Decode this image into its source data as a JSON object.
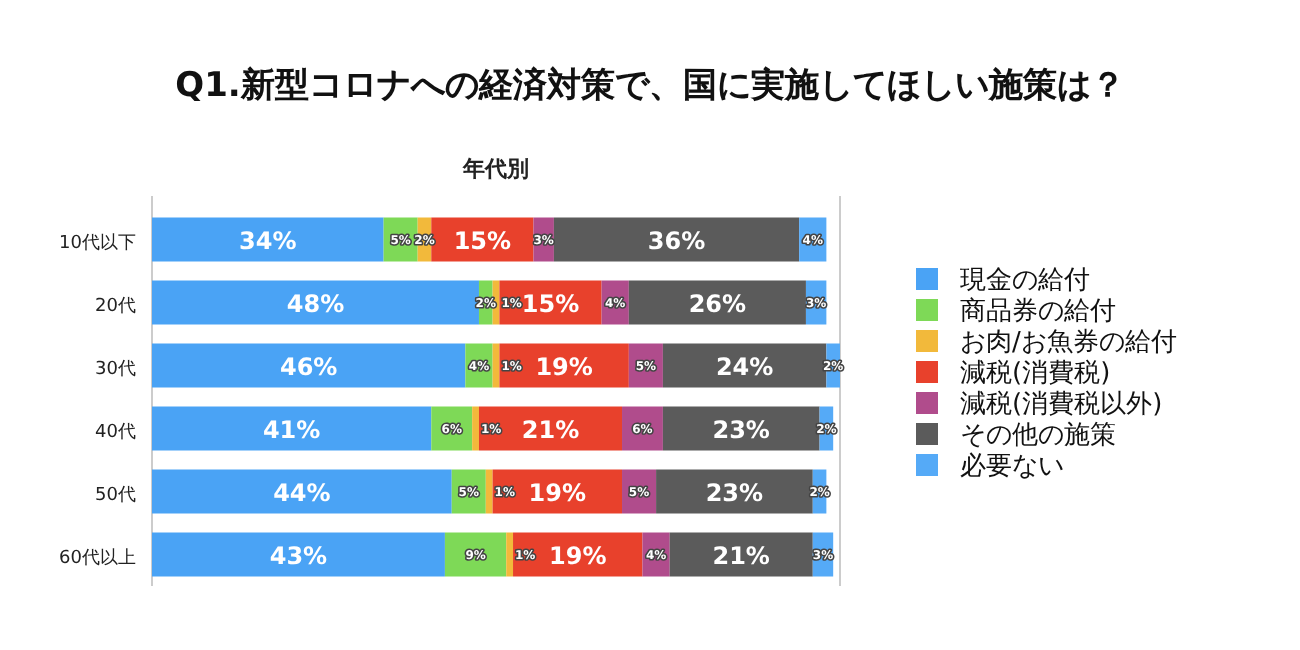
{
  "chart_data": {
    "type": "bar",
    "orientation": "horizontal",
    "stacked": true,
    "title": "Q1.新型コロナへの経済対策で、国に実施してほしい施策は？",
    "subtitle": "年代別",
    "legend": "right",
    "categories": [
      "10代以下",
      "20代",
      "30代",
      "40代",
      "50代",
      "60代以上"
    ],
    "series": [
      {
        "name": "現金の給付",
        "color": "#4aa3f5",
        "values": [
          34,
          48,
          46,
          41,
          44,
          43
        ],
        "value_labels": [
          "34%",
          "48%",
          "46%",
          "41%",
          "44%",
          "43%"
        ]
      },
      {
        "name": "商品券の給付",
        "color": "#7ed957",
        "values": [
          5,
          2,
          4,
          6,
          5,
          9
        ],
        "value_labels": [
          "5%",
          "2%",
          "4%",
          "6%",
          "5%",
          "9%"
        ]
      },
      {
        "name": "お肉/お魚券の給付",
        "color": "#f2b93b",
        "values": [
          2,
          1,
          1,
          1,
          1,
          1
        ],
        "value_labels": [
          "2%",
          "1%",
          "1%",
          "1%",
          "1%",
          "1%"
        ]
      },
      {
        "name": "減税(消費税)",
        "color": "#e8412c",
        "values": [
          15,
          15,
          19,
          21,
          19,
          19
        ],
        "value_labels": [
          "15%",
          "15%",
          "19%",
          "21%",
          "19%",
          "19%"
        ]
      },
      {
        "name": "減税(消費税以外)",
        "color": "#b04c8c",
        "values": [
          3,
          4,
          5,
          6,
          5,
          4
        ],
        "value_labels": [
          "3%",
          "4%",
          "5%",
          "6%",
          "5%",
          "4%"
        ]
      },
      {
        "name": "その他の施策",
        "color": "#5b5b5b",
        "values": [
          36,
          26,
          24,
          23,
          23,
          21
        ],
        "value_labels": [
          "36%",
          "26%",
          "24%",
          "23%",
          "23%",
          "21%"
        ]
      },
      {
        "name": "必要ない",
        "color": "#55aaf7",
        "values": [
          4,
          3,
          2,
          2,
          2,
          3
        ],
        "value_labels": [
          "4%",
          "3%",
          "2%",
          "2%",
          "2%",
          "3%"
        ]
      }
    ]
  }
}
